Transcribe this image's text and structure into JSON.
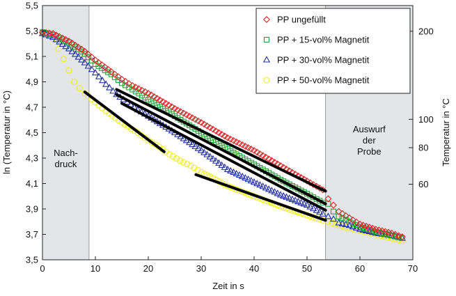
{
  "chart_data": {
    "type": "scatter",
    "xlabel": "Zeit in s",
    "ylabel": "ln (Temperatur in °C)",
    "y2label": "Temperatur in °C",
    "xlim": [
      0,
      70
    ],
    "ylim": [
      3.5,
      5.5
    ],
    "xticks": [
      "0",
      "10",
      "20",
      "30",
      "40",
      "50",
      "60",
      "70"
    ],
    "yticks": [
      "3,5",
      "3,7",
      "3,9",
      "4,1",
      "4,3",
      "4,5",
      "4,7",
      "4,9",
      "5,1",
      "5,3",
      "5,5"
    ],
    "y2ticks": [
      {
        "label": "200",
        "value": 200
      },
      {
        "label": "100",
        "value": 100
      },
      {
        "label": "80",
        "value": 80
      },
      {
        "label": "60",
        "value": 60
      }
    ],
    "grid": false,
    "legend_position": "top-right",
    "regions": [
      {
        "x0": 0,
        "x1": 8.8,
        "label": [
          "Nach-",
          "druck"
        ]
      },
      {
        "x0": 53.5,
        "x1": 70,
        "label": [
          "Auswurf",
          "der",
          "Probe"
        ]
      }
    ],
    "series": [
      {
        "name": "PP ungefüllt",
        "marker": "diamond",
        "color": "#d42a2a",
        "x": [
          0,
          2,
          5,
          8,
          10,
          13,
          15,
          17,
          20,
          25,
          30,
          35,
          40,
          45,
          50,
          53,
          54,
          55,
          56,
          58,
          60,
          63,
          66,
          68
        ],
        "y": [
          5.29,
          5.28,
          5.22,
          5.14,
          5.07,
          4.98,
          4.92,
          4.87,
          4.81,
          4.69,
          4.58,
          4.46,
          4.36,
          4.24,
          4.12,
          4.05,
          3.98,
          3.93,
          3.88,
          3.83,
          3.78,
          3.74,
          3.71,
          3.68
        ]
      },
      {
        "name": "PP + 15-vol% Magnetit",
        "marker": "square",
        "color": "#2a9a3a",
        "x": [
          0,
          2,
          5,
          8,
          10,
          13,
          15,
          17,
          20,
          25,
          30,
          35,
          40,
          45,
          50,
          53,
          54,
          55,
          56,
          58,
          60,
          63,
          66,
          68
        ],
        "y": [
          5.29,
          5.27,
          5.21,
          5.12,
          5.04,
          4.96,
          4.89,
          4.84,
          4.76,
          4.63,
          4.5,
          4.37,
          4.25,
          4.13,
          4.02,
          3.95,
          3.94,
          3.88,
          3.84,
          3.8,
          3.76,
          3.72,
          3.69,
          3.67
        ]
      },
      {
        "name": "PP + 30-vol% Magnetit",
        "marker": "triangle",
        "color": "#24309c",
        "x": [
          0,
          2,
          5,
          8,
          10,
          12,
          14,
          16,
          18,
          20,
          25,
          30,
          35,
          40,
          45,
          50,
          53,
          54,
          55,
          56,
          58,
          60,
          63,
          66,
          68
        ],
        "y": [
          5.28,
          5.25,
          5.16,
          5.05,
          4.97,
          4.88,
          4.8,
          4.74,
          4.68,
          4.63,
          4.5,
          4.36,
          4.21,
          4.11,
          4.01,
          3.93,
          3.86,
          3.84,
          3.82,
          3.79,
          3.77,
          3.74,
          3.71,
          3.69,
          3.67
        ]
      },
      {
        "name": "PP + 50-vol% Magnetit",
        "marker": "circle",
        "color": "#eeee22",
        "x": [
          0,
          1,
          2,
          3,
          4,
          5,
          6,
          7,
          8,
          10,
          12,
          15,
          18,
          20,
          22,
          24,
          26,
          28,
          30,
          35,
          40,
          45,
          50,
          53,
          54,
          56,
          58,
          60,
          62,
          64,
          66,
          68
        ],
        "y": [
          5.29,
          5.28,
          5.24,
          5.16,
          5.08,
          4.99,
          4.9,
          4.85,
          4.81,
          4.74,
          4.67,
          4.58,
          4.5,
          4.44,
          4.39,
          4.33,
          4.28,
          4.24,
          4.19,
          4.08,
          4.0,
          3.92,
          3.85,
          3.81,
          3.8,
          3.77,
          3.75,
          3.73,
          3.71,
          3.69,
          3.67,
          3.65
        ]
      }
    ],
    "fit_lines": [
      {
        "x": [
          14,
          53.5
        ],
        "y": [
          4.84,
          4.04
        ]
      },
      {
        "x": [
          14,
          53.5
        ],
        "y": [
          4.8,
          3.94
        ]
      },
      {
        "x": [
          15,
          53.5
        ],
        "y": [
          4.73,
          3.89
        ]
      },
      {
        "x": [
          8,
          23
        ],
        "y": [
          4.82,
          4.35
        ]
      },
      {
        "x": [
          29,
          53.5
        ],
        "y": [
          4.17,
          3.81
        ]
      }
    ]
  }
}
